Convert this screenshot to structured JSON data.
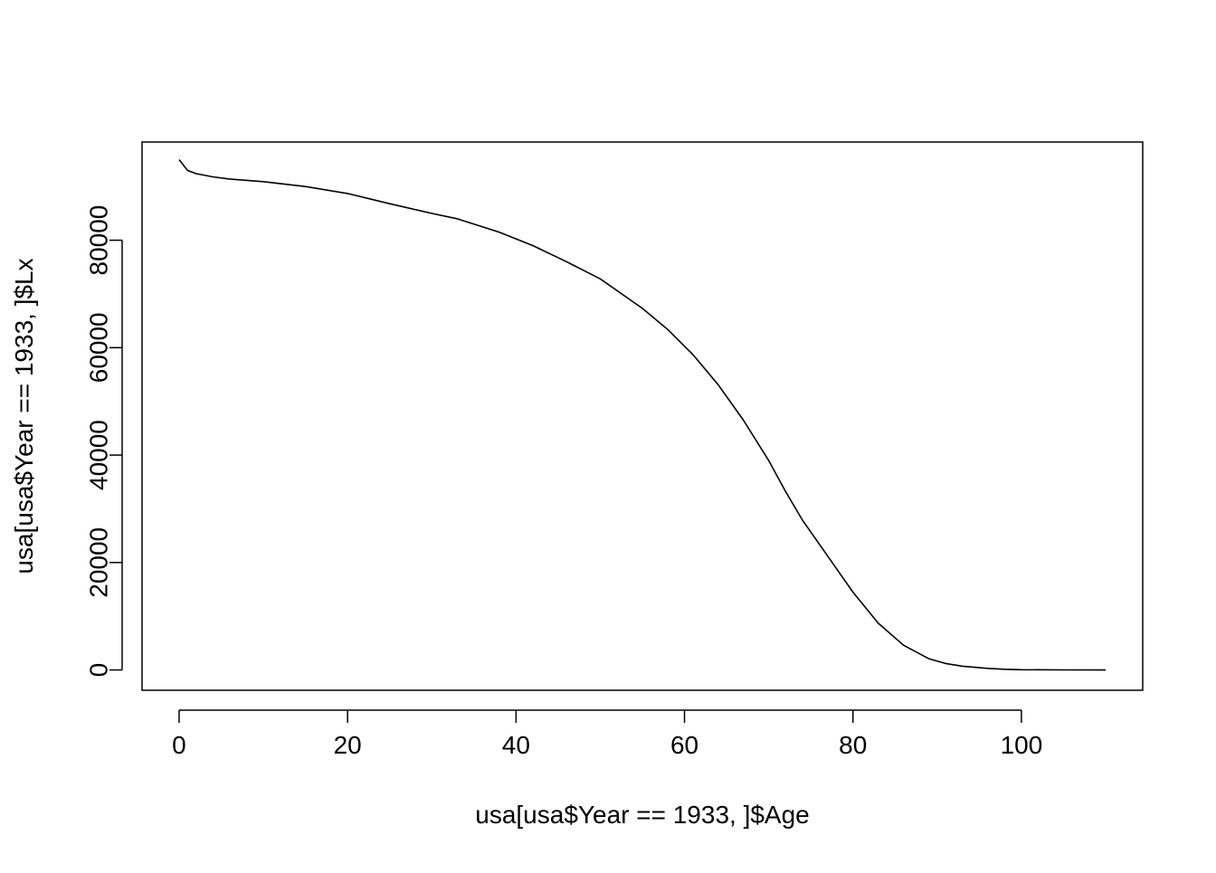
{
  "chart_data": {
    "type": "line",
    "title": "",
    "xlabel": "usa[usa$Year == 1933, ]$Age",
    "ylabel": "usa[usa$Year == 1933, ]$Lx",
    "xlim": [
      -4.4,
      114.4
    ],
    "ylim": [
      -3780,
      98280
    ],
    "x_ticks": [
      0,
      20,
      40,
      60,
      80,
      100
    ],
    "x_tick_labels": [
      "0",
      "20",
      "40",
      "60",
      "80",
      "100"
    ],
    "y_ticks": [
      0,
      20000,
      40000,
      60000,
      80000
    ],
    "y_tick_labels": [
      "0",
      "20000",
      "40000",
      "60000",
      "80000"
    ],
    "grid": false,
    "legend": "none",
    "series": [
      {
        "color": "#000000",
        "x": [
          0,
          1,
          2,
          4,
          6,
          10,
          15,
          20,
          25,
          30,
          33,
          38,
          42,
          46,
          50,
          55,
          58,
          61,
          64,
          67,
          70,
          72,
          74,
          77,
          80,
          83,
          86,
          89,
          91,
          93,
          96,
          98,
          100,
          105,
          110
        ],
        "y": [
          95000,
          93000,
          92400,
          91800,
          91400,
          90900,
          90000,
          88700,
          86800,
          85000,
          84000,
          81500,
          79000,
          76000,
          72800,
          67300,
          63400,
          58700,
          53100,
          46500,
          39000,
          33200,
          27900,
          21200,
          14500,
          8700,
          4600,
          2100,
          1200,
          700,
          300,
          120,
          40,
          5,
          0
        ]
      }
    ]
  }
}
